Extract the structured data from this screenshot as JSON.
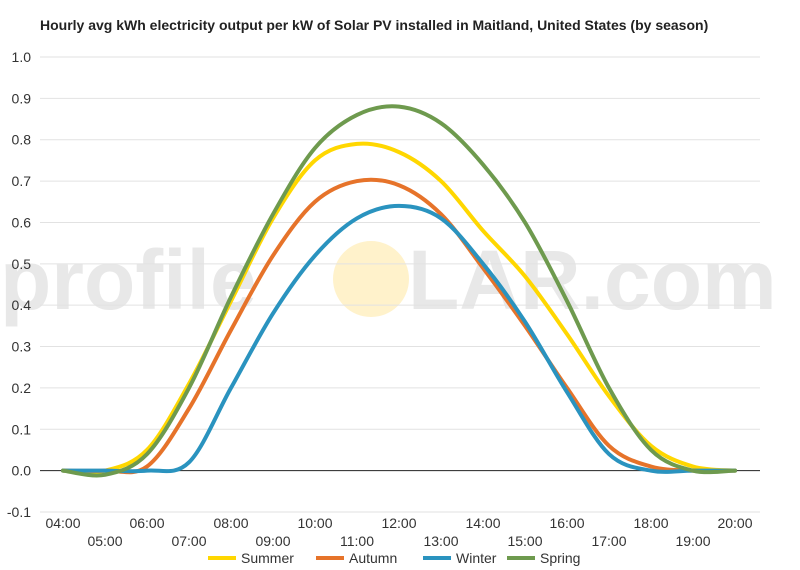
{
  "chart_data": {
    "type": "line",
    "title": "Hourly avg kWh electricity output per kW of Solar PV installed in Maitland, United States (by season)",
    "xlabel": "",
    "ylabel": "",
    "ylim": [
      -0.1,
      1.0
    ],
    "yticks": [
      "-0.1",
      "0.0",
      "0.1",
      "0.2",
      "0.3",
      "0.4",
      "0.5",
      "0.6",
      "0.7",
      "0.8",
      "0.9",
      "1.0"
    ],
    "x": [
      "04:00",
      "05:00",
      "06:00",
      "07:00",
      "08:00",
      "09:00",
      "10:00",
      "11:00",
      "12:00",
      "13:00",
      "14:00",
      "15:00",
      "16:00",
      "17:00",
      "18:00",
      "19:00",
      "20:00"
    ],
    "grid": true,
    "legend_position": "bottom",
    "series": [
      {
        "name": "Summer",
        "color": "#FFD700",
        "values": [
          0.0,
          0.0,
          0.05,
          0.21,
          0.41,
          0.61,
          0.75,
          0.79,
          0.77,
          0.7,
          0.58,
          0.47,
          0.33,
          0.18,
          0.06,
          0.01,
          0.0
        ]
      },
      {
        "name": "Autumn",
        "color": "#E6732A",
        "values": [
          0.0,
          0.0,
          0.01,
          0.15,
          0.34,
          0.52,
          0.65,
          0.7,
          0.69,
          0.62,
          0.49,
          0.35,
          0.2,
          0.06,
          0.01,
          0.0,
          0.0
        ]
      },
      {
        "name": "Winter",
        "color": "#2A93BF",
        "values": [
          0.0,
          0.0,
          0.0,
          0.02,
          0.2,
          0.38,
          0.52,
          0.61,
          0.64,
          0.61,
          0.5,
          0.36,
          0.19,
          0.04,
          0.0,
          0.0,
          0.0
        ]
      },
      {
        "name": "Spring",
        "color": "#6E9A4E",
        "values": [
          0.0,
          -0.01,
          0.04,
          0.2,
          0.42,
          0.62,
          0.78,
          0.86,
          0.88,
          0.84,
          0.74,
          0.6,
          0.41,
          0.2,
          0.05,
          0.0,
          0.0
        ]
      }
    ]
  },
  "watermark": {
    "left": "profile",
    "right": "LAR.com",
    "sun_color": "#FFE9A8"
  }
}
